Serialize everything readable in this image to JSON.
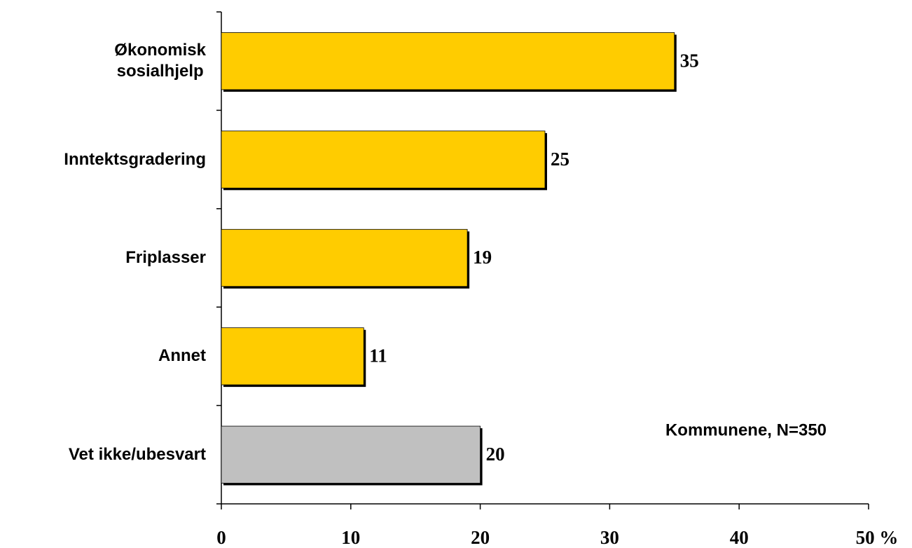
{
  "chart_data": {
    "type": "hbar",
    "categories": [
      "Økonomisk\nsosialhjelp",
      "Inntektsgradering",
      "Friplasser",
      "Annet",
      "Vet ikke/ubesvart"
    ],
    "values": [
      35,
      25,
      19,
      11,
      20
    ],
    "colors": [
      "#FFCC00",
      "#FFCC00",
      "#FFCC00",
      "#FFCC00",
      "#C0C0C0"
    ],
    "xlim": [
      0,
      50
    ],
    "xticks": [
      0,
      10,
      20,
      30,
      40,
      {
        "value": 50,
        "label": "50 %"
      }
    ],
    "annotation": "Kommunene, N=350"
  }
}
